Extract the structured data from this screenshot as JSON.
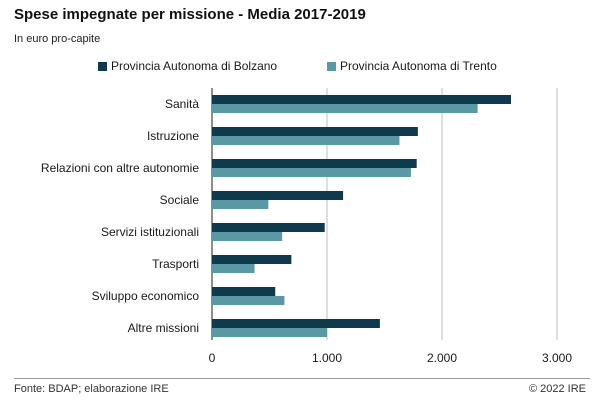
{
  "header": {
    "title": "Spese impegnate per missione - Media 2017-2019",
    "subtitle": "In euro pro-capite"
  },
  "footer": {
    "source": "Fonte: BDAP; elaborazione IRE",
    "copyright": "© 2022 IRE"
  },
  "chart_data": {
    "type": "bar",
    "orientation": "horizontal",
    "categories": [
      "Sanità",
      "Istruzione",
      "Relazioni con altre autonomie",
      "Sociale",
      "Servizi istituzionali",
      "Trasporti",
      "Sviluppo economico",
      "Altre missioni"
    ],
    "series": [
      {
        "name": "Provincia Autonoma di Bolzano",
        "color": "#0f3a4d",
        "values": [
          2600,
          1790,
          1780,
          1140,
          980,
          690,
          550,
          1460
        ]
      },
      {
        "name": "Provincia Autonoma di Trento",
        "color": "#5b98a6",
        "values": [
          2310,
          1630,
          1730,
          490,
          610,
          370,
          630,
          1000
        ]
      }
    ],
    "xlim": [
      0,
      3000
    ],
    "ticks": [
      0,
      1000,
      2000,
      3000
    ],
    "tick_labels": [
      "0",
      "1.000",
      "2.000",
      "3.000"
    ],
    "legend_position": "top",
    "grid": "vertical",
    "xlabel": "",
    "ylabel": ""
  }
}
